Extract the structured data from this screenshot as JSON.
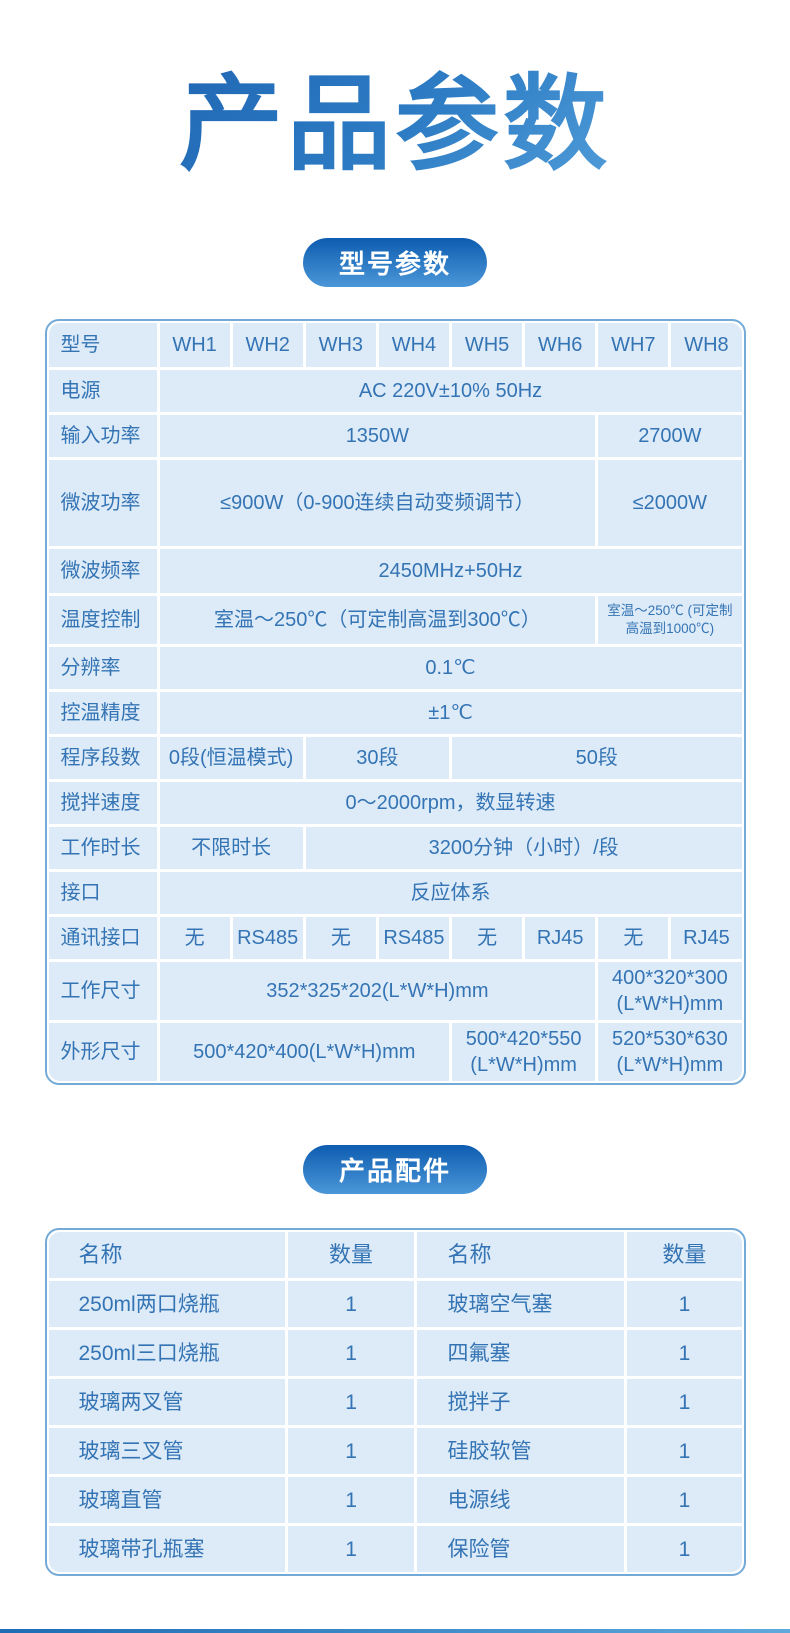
{
  "title": "产品参数",
  "colors": {
    "title_dark": "#1b5dad",
    "title_light": "#66b0e6",
    "pill_top": "#0d5cb0",
    "pill_bottom": "#4c97d8",
    "table_border": "#74aad8",
    "cell_bg": "#ddebf8",
    "text_blue": "#3474b4",
    "line_left": "#1e6cb4",
    "line_right": "#5fa9dc"
  },
  "specs": {
    "pill": "型号参数",
    "header": {
      "label": "型号",
      "models": [
        "WH1",
        "WH2",
        "WH3",
        "WH4",
        "WH5",
        "WH6",
        "WH7",
        "WH8"
      ]
    },
    "rows": [
      {
        "label": "电源",
        "cells": [
          {
            "text": "AC 220V±10% 50Hz",
            "span": 8
          }
        ]
      },
      {
        "label": "输入功率",
        "cells": [
          {
            "text": "1350W",
            "span": 6
          },
          {
            "text": "2700W",
            "span": 2
          }
        ]
      },
      {
        "label": "微波功率",
        "cells": [
          {
            "text": "≤900W（0-900连续自动变频调节）",
            "span": 6
          },
          {
            "text": "≤2000W",
            "span": 2
          }
        ]
      },
      {
        "label": "微波频率",
        "cells": [
          {
            "text": "2450MHz+50Hz",
            "span": 8
          }
        ]
      },
      {
        "label": "温度控制",
        "cells": [
          {
            "text": "室温～250℃（可定制高温到300℃）",
            "span": 6
          },
          {
            "text": "室温～250℃ (可定制高温到1000℃)",
            "span": 2,
            "small": true
          }
        ]
      },
      {
        "label": "分辨率",
        "cells": [
          {
            "text": "0.1℃",
            "span": 8
          }
        ]
      },
      {
        "label": "控温精度",
        "cells": [
          {
            "text": "±1℃",
            "span": 8
          }
        ]
      },
      {
        "label": "程序段数",
        "cells": [
          {
            "text": "0段(恒温模式)",
            "span": 2
          },
          {
            "text": "30段",
            "span": 2
          },
          {
            "text": "50段",
            "span": 4
          }
        ]
      },
      {
        "label": "搅拌速度",
        "cells": [
          {
            "text": "0～2000rpm，数显转速",
            "span": 8
          }
        ]
      },
      {
        "label": "工作时长",
        "cells": [
          {
            "text": "不限时长",
            "span": 2
          },
          {
            "text": "3200分钟（小时）/段",
            "span": 6
          }
        ]
      },
      {
        "label": "接口",
        "cells": [
          {
            "text": "反应体系",
            "span": 8
          }
        ]
      },
      {
        "label": "通讯接口",
        "cells": [
          {
            "text": "无",
            "span": 1
          },
          {
            "text": "RS485",
            "span": 1
          },
          {
            "text": "无",
            "span": 1
          },
          {
            "text": "RS485",
            "span": 1
          },
          {
            "text": "无",
            "span": 1
          },
          {
            "text": "RJ45",
            "span": 1
          },
          {
            "text": "无",
            "span": 1
          },
          {
            "text": "RJ45",
            "span": 1
          }
        ]
      },
      {
        "label": "工作尺寸",
        "cells": [
          {
            "text": "352*325*202(L*W*H)mm",
            "span": 6
          },
          {
            "text": "400*320*300 (L*W*H)mm",
            "span": 2
          }
        ]
      },
      {
        "label": "外形尺寸",
        "cells": [
          {
            "text": "500*420*400(L*W*H)mm",
            "span": 4
          },
          {
            "text": "500*420*550 (L*W*H)mm",
            "span": 2
          },
          {
            "text": "520*530*630 (L*W*H)mm",
            "span": 2
          }
        ]
      }
    ]
  },
  "accessories": {
    "pill": "产品配件",
    "headers": [
      "名称",
      "数量",
      "名称",
      "数量"
    ],
    "rows": [
      [
        "250ml两口烧瓶",
        "1",
        "玻璃空气塞",
        "1"
      ],
      [
        "250ml三口烧瓶",
        "1",
        "四氟塞",
        "1"
      ],
      [
        "玻璃两叉管",
        "1",
        "搅拌子",
        "1"
      ],
      [
        "玻璃三叉管",
        "1",
        "硅胶软管",
        "1"
      ],
      [
        "玻璃直管",
        "1",
        "电源线",
        "1"
      ],
      [
        "玻璃带孔瓶塞",
        "1",
        "保险管",
        "1"
      ]
    ]
  }
}
